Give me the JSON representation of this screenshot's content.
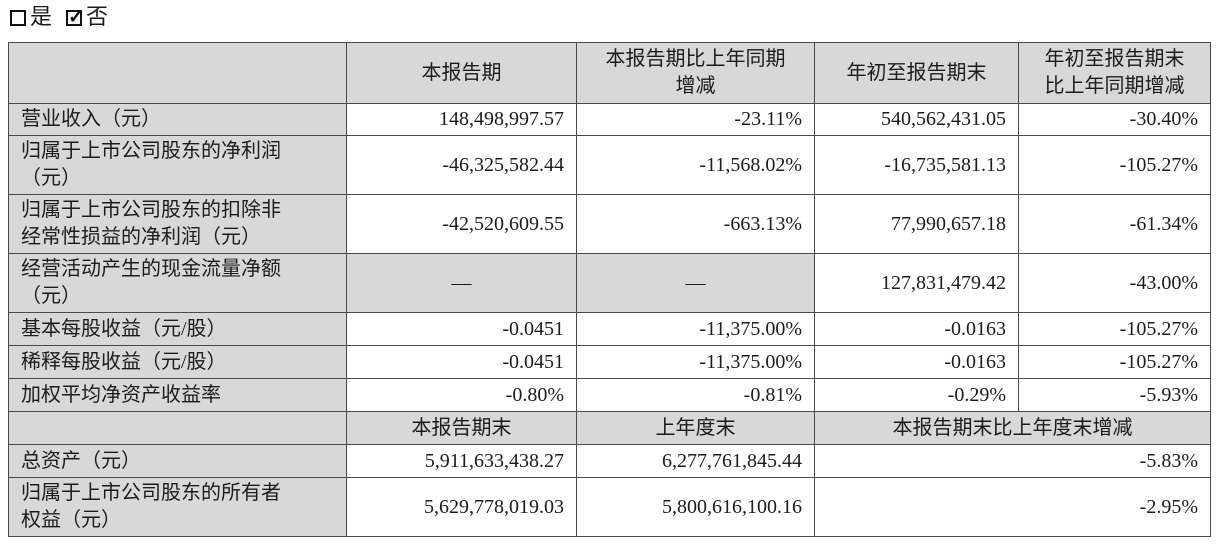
{
  "checkbox_row": {
    "yes": {
      "label": "是",
      "checked": false
    },
    "no": {
      "label": "否",
      "checked": true
    }
  },
  "table": {
    "header_bg": "#d8d8d8",
    "border_color": "#4a4a4a",
    "header1": [
      "",
      "本报告期",
      "本报告期比上年同期\n增减",
      "年初至报告期末",
      "年初至报告期末\n比上年同期增减"
    ],
    "rows1": [
      {
        "label": "营业收入（元）",
        "values": [
          "148,498,997.57",
          "-23.11%",
          "540,562,431.05",
          "-30.40%"
        ]
      },
      {
        "label": "归属于上市公司股东的净利润\n（元）",
        "values": [
          "-46,325,582.44",
          "-11,568.02%",
          "-16,735,581.13",
          "-105.27%"
        ]
      },
      {
        "label": "归属于上市公司股东的扣除非\n经常性损益的净利润（元）",
        "values": [
          "-42,520,609.55",
          "-663.13%",
          "77,990,657.18",
          "-61.34%"
        ]
      },
      {
        "label": "经营活动产生的现金流量净额\n（元）",
        "values": [
          "—",
          "—",
          "127,831,479.42",
          "-43.00%"
        ],
        "gray_cols": [
          0,
          1
        ],
        "center_cols": [
          0,
          1
        ]
      },
      {
        "label": "基本每股收益（元/股）",
        "values": [
          "-0.0451",
          "-11,375.00%",
          "-0.0163",
          "-105.27%"
        ],
        "single": true
      },
      {
        "label": "稀释每股收益（元/股）",
        "values": [
          "-0.0451",
          "-11,375.00%",
          "-0.0163",
          "-105.27%"
        ],
        "single": true
      },
      {
        "label": "加权平均净资产收益率",
        "values": [
          "-0.80%",
          "-0.81%",
          "-0.29%",
          "-5.93%"
        ],
        "single": true
      }
    ],
    "header2": [
      "",
      "本报告期末",
      "上年度末",
      "本报告期末比上年度末增减"
    ],
    "rows2": [
      {
        "label": "总资产（元）",
        "values": [
          "5,911,633,438.27",
          "6,277,761,845.44",
          "-5.83%"
        ],
        "single": true
      },
      {
        "label": "归属于上市公司股东的所有者\n权益（元）",
        "values": [
          "5,629,778,019.03",
          "5,800,616,100.16",
          "-2.95%"
        ]
      }
    ]
  }
}
